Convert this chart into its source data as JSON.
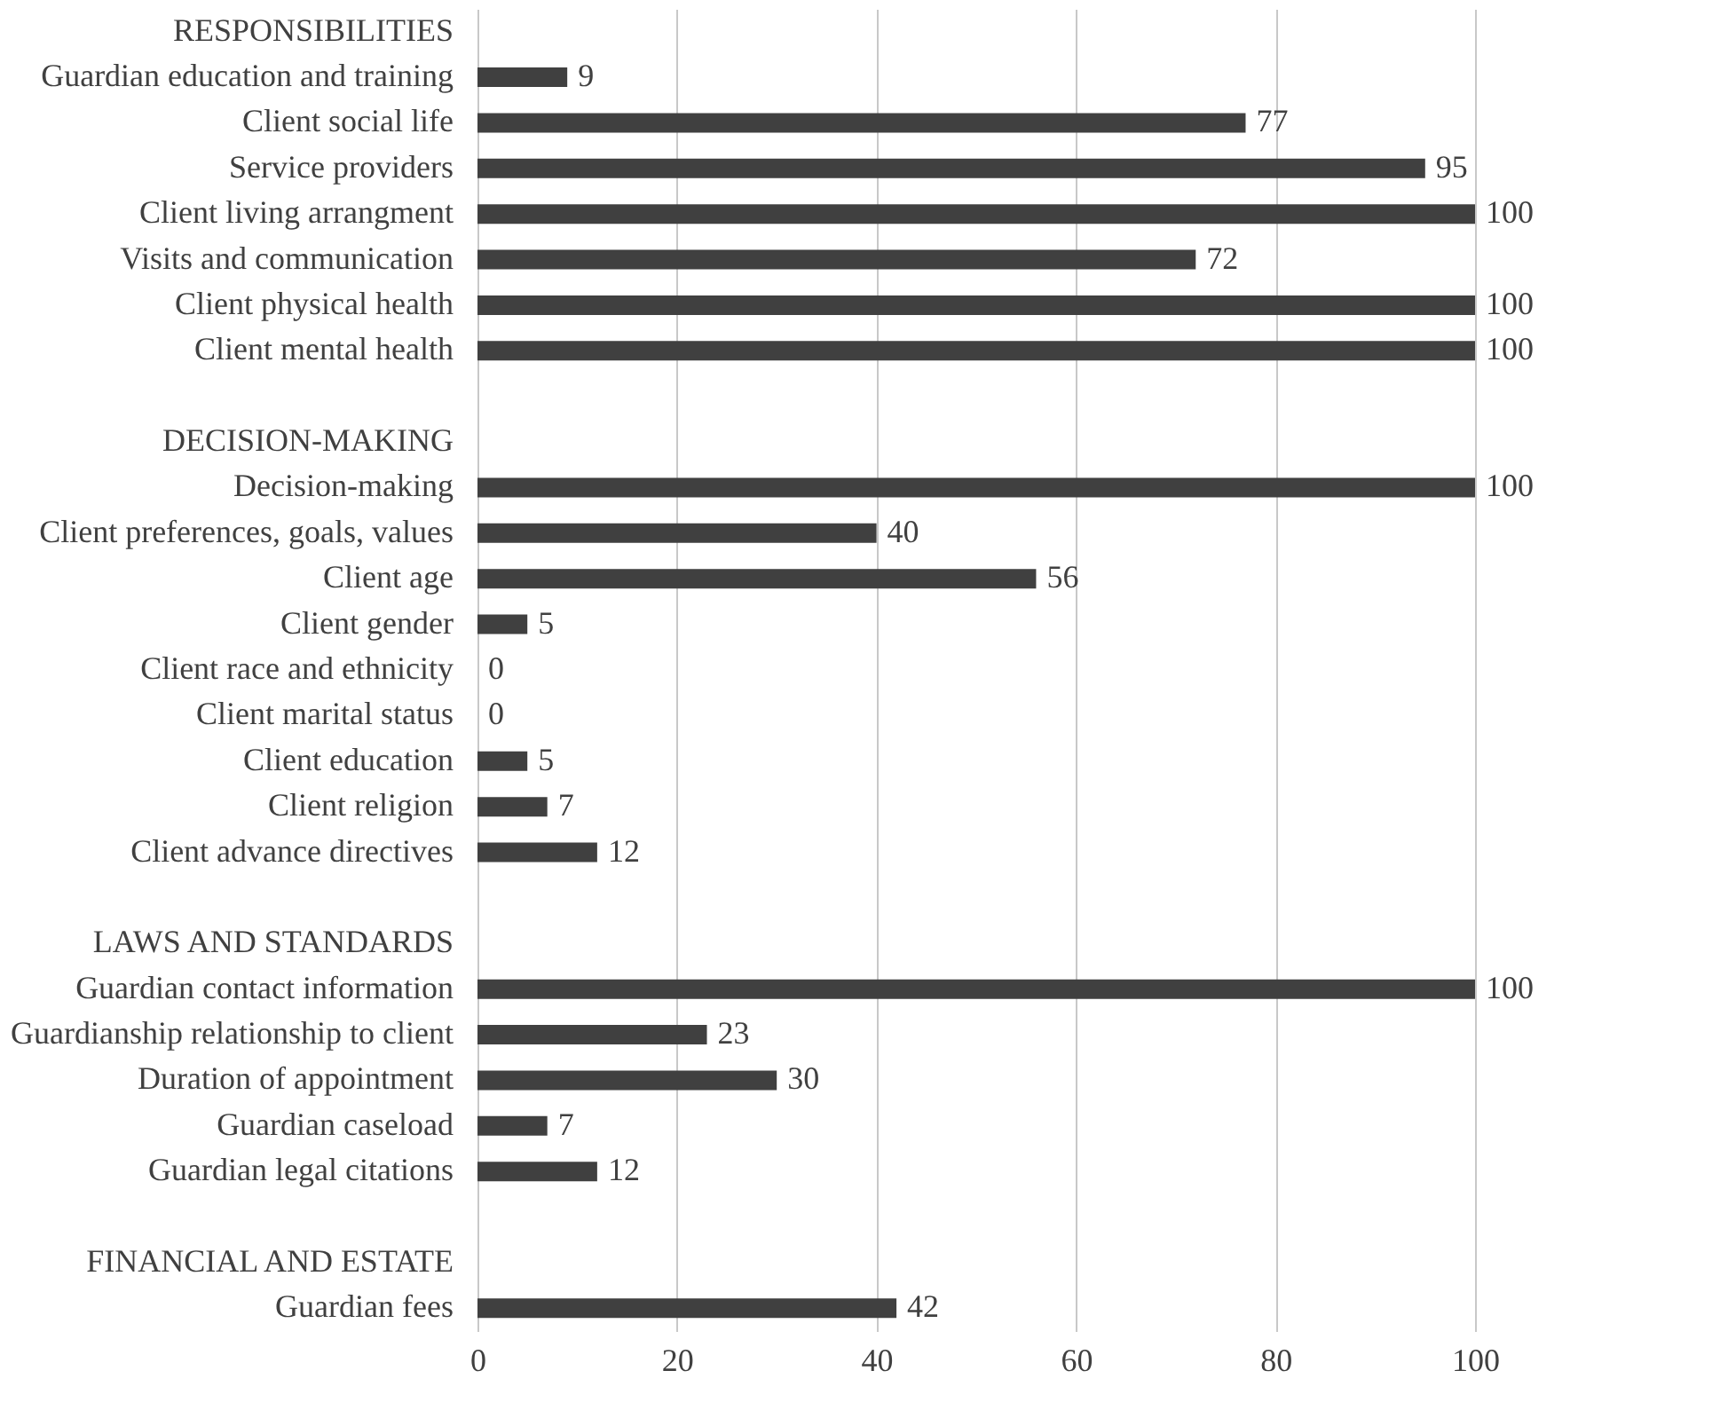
{
  "chart_data": {
    "type": "bar",
    "orientation": "horizontal",
    "categories": [
      "RESPONSIBILITIES",
      "Guardian education and training",
      "Client social life",
      "Service providers",
      "Client living arrangment",
      "Visits and communication",
      "Client physical health",
      "Client mental health",
      null,
      "DECISION-MAKING",
      "Decision-making",
      "Client preferences, goals, values",
      "Client age",
      "Client gender",
      "Client race and ethnicity",
      "Client marital status",
      "Client education",
      "Client religion",
      "Client advance directives",
      null,
      "LAWS AND STANDARDS",
      "Guardian contact information",
      "Guardianship relationship to client",
      "Duration of appointment",
      "Guardian caseload",
      "Guardian legal citations",
      null,
      "FINANCIAL AND ESTATE",
      "Guardian fees"
    ],
    "values": [
      null,
      9,
      77,
      95,
      100,
      72,
      100,
      100,
      null,
      null,
      100,
      40,
      56,
      5,
      0,
      0,
      5,
      7,
      12,
      null,
      null,
      100,
      23,
      30,
      7,
      12,
      null,
      null,
      42
    ],
    "color": "#404040",
    "xlim": [
      0,
      100
    ],
    "xticks": [
      0,
      20,
      40,
      60,
      80,
      100
    ],
    "grid": "x",
    "data_labels": true
  }
}
